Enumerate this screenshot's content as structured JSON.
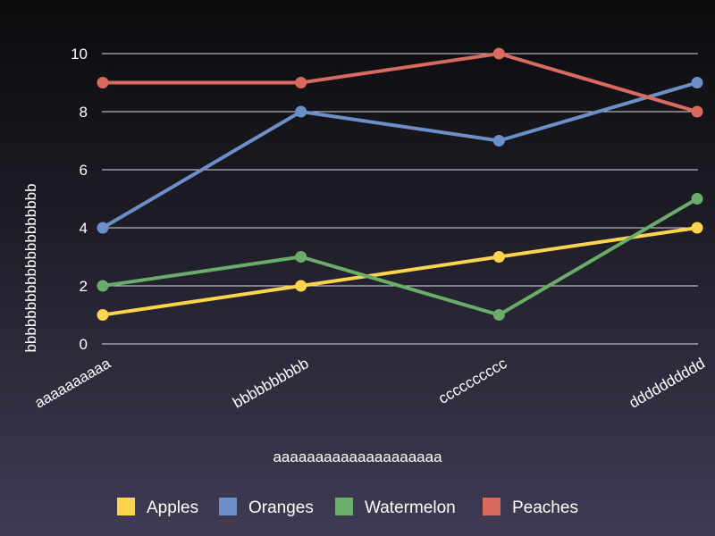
{
  "chart_data": {
    "type": "line",
    "title": "",
    "categories": [
      "aaaaaaaaaa",
      "bbbbbbbbbb",
      "cccccccccc",
      "dddddddddd"
    ],
    "series": [
      {
        "name": "Apples",
        "color": "#ffd54f",
        "values": [
          1,
          2,
          3,
          4
        ]
      },
      {
        "name": "Oranges",
        "color": "#6d8fc8",
        "values": [
          4,
          8,
          7,
          9
        ]
      },
      {
        "name": "Watermelon",
        "color": "#6aac6a",
        "values": [
          2,
          3,
          1,
          5
        ]
      },
      {
        "name": "Peaches",
        "color": "#d86a5f",
        "values": [
          9,
          9,
          10,
          8
        ]
      }
    ],
    "xlabel": "aaaaaaaaaaaaaaaaaaaa",
    "ylabel": "bbbbbbbbbbbbbbbbbbbb",
    "ylim": [
      0,
      10
    ],
    "yticks": [
      0,
      2,
      4,
      6,
      8,
      10
    ],
    "grid": true,
    "legend_position": "bottom"
  }
}
